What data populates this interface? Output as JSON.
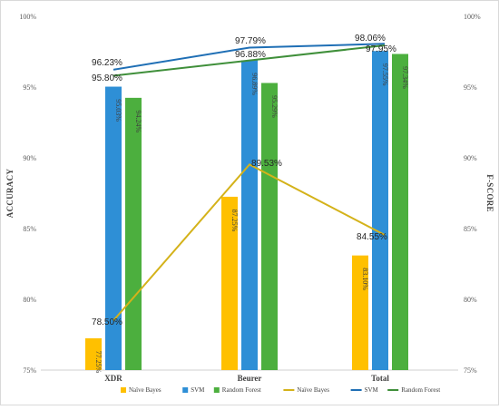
{
  "chart_data": {
    "type": "bar",
    "categories": [
      "XDR",
      "Beurer",
      "Total"
    ],
    "y_left": {
      "label": "ACCURACY",
      "range": [
        75,
        100
      ],
      "ticks": [
        "75%",
        "80%",
        "85%",
        "90%",
        "95%",
        "100%"
      ]
    },
    "y_right": {
      "label": "F-SCORE",
      "range": [
        75,
        100
      ],
      "ticks": [
        "75%",
        "80%",
        "85%",
        "90%",
        "95%",
        "100%"
      ]
    },
    "bar_series": [
      {
        "name": "Naïve Bayes",
        "color": "#FFC000",
        "values": [
          77.25,
          87.25,
          83.1
        ],
        "labels": [
          "77.25%",
          "87.25%",
          "83.10%"
        ]
      },
      {
        "name": "SVM",
        "color": "#2E8FD6",
        "values": [
          95.03,
          96.89,
          97.55
        ],
        "labels": [
          "95.03%",
          "96.89%",
          "97.55%"
        ]
      },
      {
        "name": "Random Forest",
        "color": "#4CAF3E",
        "values": [
          94.24,
          95.29,
          97.34
        ],
        "labels": [
          "94.24%",
          "95.29%",
          "97.34%"
        ]
      }
    ],
    "line_series": [
      {
        "name": "Naïve Bayes",
        "color": "#D4B21A",
        "values": [
          78.5,
          89.53,
          84.55
        ],
        "labels": [
          "78.50%",
          "89.53%",
          "84.55%"
        ]
      },
      {
        "name": "SVM",
        "color": "#1F6FB5",
        "values": [
          96.23,
          97.79,
          98.06
        ],
        "labels": [
          "96.23%",
          "97.79%",
          "98.06%"
        ]
      },
      {
        "name": "Random Forest",
        "color": "#3F8F3A",
        "values": [
          95.8,
          96.88,
          97.95
        ],
        "labels": [
          "95.80%",
          "96.88%",
          "97.95%"
        ]
      }
    ],
    "grid": false,
    "legend_position": "bottom"
  }
}
